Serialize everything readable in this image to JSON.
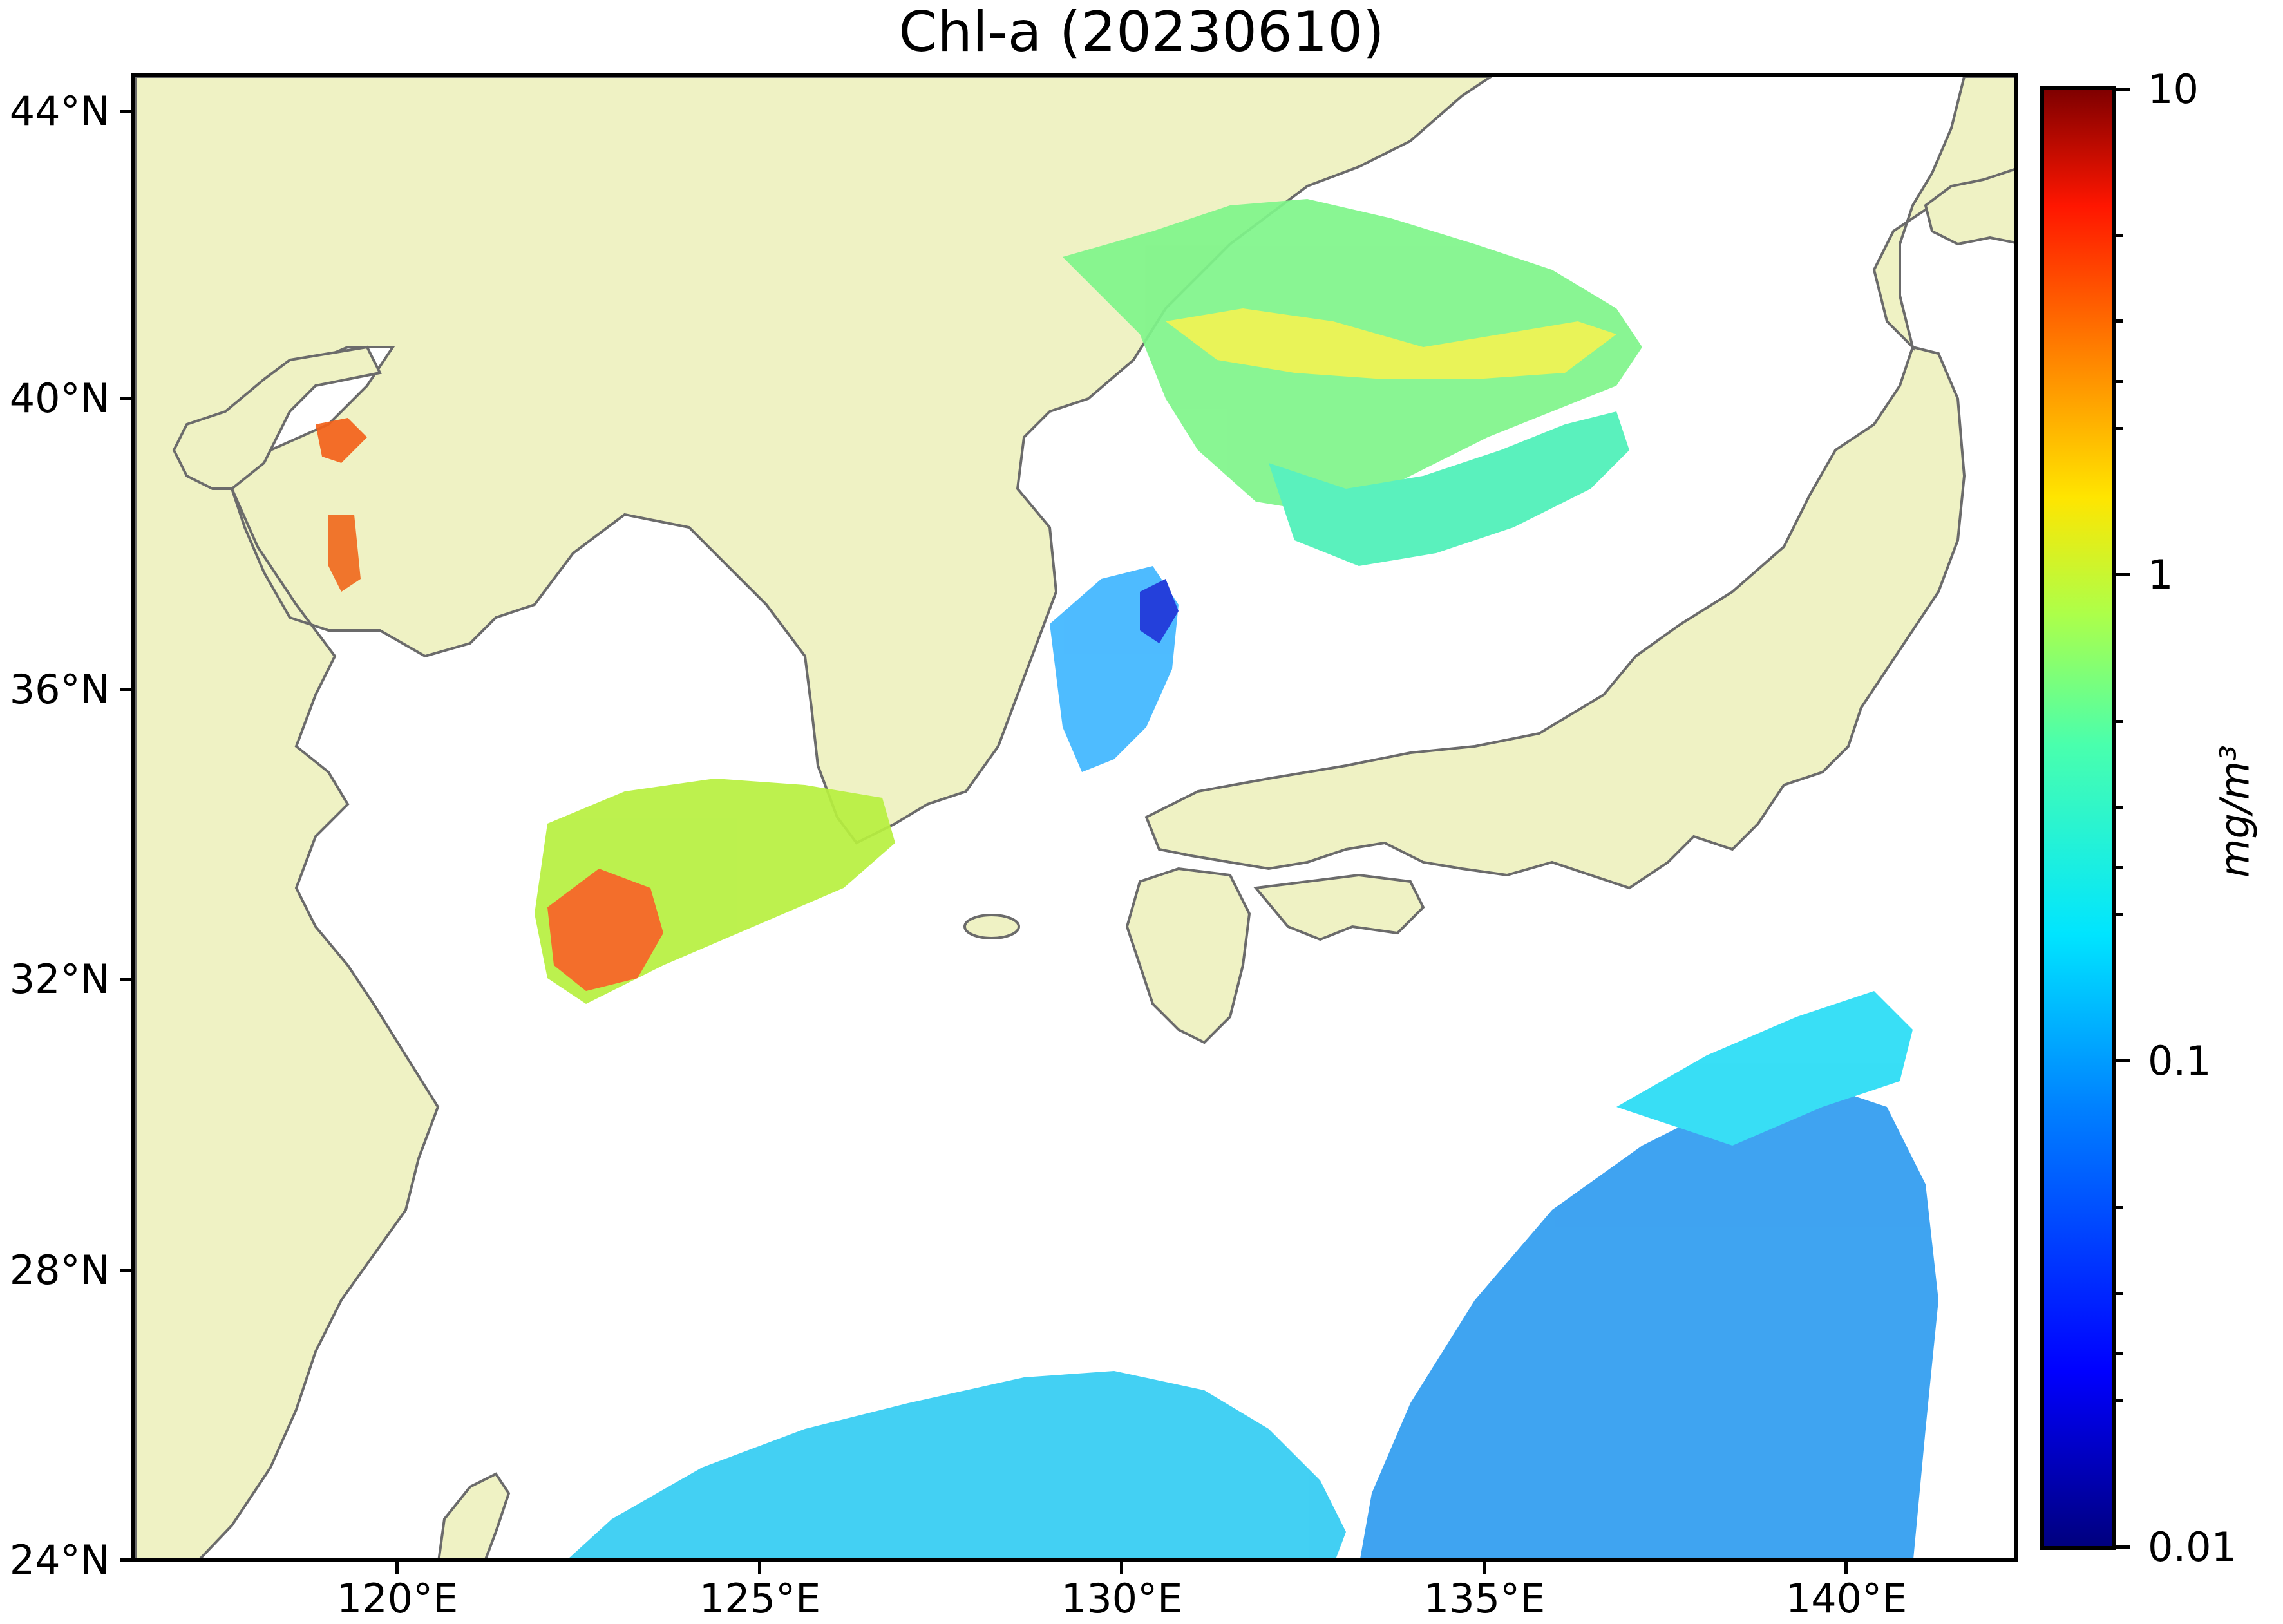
{
  "title": "Chl-a (20230610)",
  "map": {
    "lon_range": [
      116.5,
      143.0
    ],
    "lat_range": [
      24.0,
      44.5
    ],
    "lat_ticks": [
      {
        "value": 44,
        "label": "44°N"
      },
      {
        "value": 40,
        "label": "40°N"
      },
      {
        "value": 36,
        "label": "36°N"
      },
      {
        "value": 32,
        "label": "32°N"
      },
      {
        "value": 28,
        "label": "28°N"
      },
      {
        "value": 24,
        "label": "24°N"
      }
    ],
    "lon_ticks": [
      {
        "value": 120,
        "label": "120°E"
      },
      {
        "value": 125,
        "label": "125°E"
      },
      {
        "value": 130,
        "label": "130°E"
      },
      {
        "value": 135,
        "label": "135°E"
      },
      {
        "value": 140,
        "label": "140°E"
      }
    ],
    "land_color": "#eff2c4",
    "coast_color": "#6b6b6b"
  },
  "colorbar": {
    "colormap": "jet",
    "scale": "log",
    "range": [
      0.01,
      10
    ],
    "ticks": [
      {
        "value": 10,
        "label": "10"
      },
      {
        "value": 1,
        "label": "1"
      },
      {
        "value": 0.1,
        "label": "0.1"
      },
      {
        "value": 0.01,
        "label": "0.01"
      }
    ],
    "unit": "mg/m³"
  }
}
